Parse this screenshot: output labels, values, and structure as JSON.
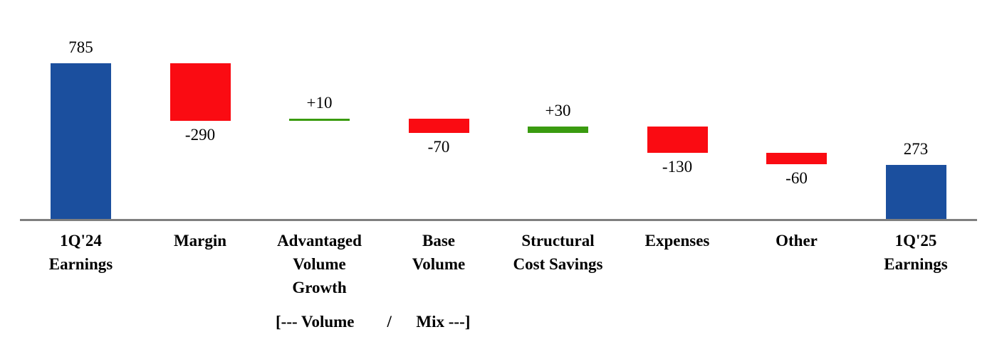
{
  "chart_data": {
    "type": "bar",
    "subtype": "waterfall",
    "title": "",
    "xlabel": "",
    "ylabel": "",
    "axis_range": [
      0,
      785
    ],
    "grid": false,
    "legend": false,
    "items": [
      {
        "label": "1Q'24 Earnings",
        "label_lines": [
          "1Q'24",
          "Earnings"
        ],
        "value": 785,
        "value_label": "785",
        "kind": "total",
        "value_label_position": "above"
      },
      {
        "label": "Margin",
        "label_lines": [
          "Margin"
        ],
        "value": -290,
        "value_label": "-290",
        "kind": "decrease",
        "value_label_position": "below"
      },
      {
        "label": "Advantaged Volume Growth",
        "label_lines": [
          "Advantaged",
          "Volume",
          "Growth"
        ],
        "value": 10,
        "value_label": "+10",
        "kind": "increase",
        "value_label_position": "above"
      },
      {
        "label": "Base Volume",
        "label_lines": [
          "Base",
          "Volume"
        ],
        "value": -70,
        "value_label": "-70",
        "kind": "decrease",
        "value_label_position": "below"
      },
      {
        "label": "Structural Cost Savings",
        "label_lines": [
          "Structural",
          "Cost Savings"
        ],
        "value": 30,
        "value_label": "+30",
        "kind": "increase",
        "value_label_position": "above"
      },
      {
        "label": "Expenses",
        "label_lines": [
          "Expenses"
        ],
        "value": -130,
        "value_label": "-130",
        "kind": "decrease",
        "value_label_position": "below"
      },
      {
        "label": "Other",
        "label_lines": [
          "Other"
        ],
        "value": -60,
        "value_label": "-60",
        "kind": "decrease",
        "value_label_position": "below"
      },
      {
        "label": "1Q'25 Earnings",
        "label_lines": [
          "1Q'25",
          "Earnings"
        ],
        "value": 273,
        "value_label": "273",
        "kind": "total",
        "value_label_position": "above"
      }
    ],
    "colors": {
      "total": "#1B4F9E",
      "increase": "#3A9B10",
      "decrease": "#FA0B12",
      "axis": "#7F7F7F",
      "text": "#000000"
    },
    "annotation": "[--- Volume        /      Mix ---]"
  }
}
